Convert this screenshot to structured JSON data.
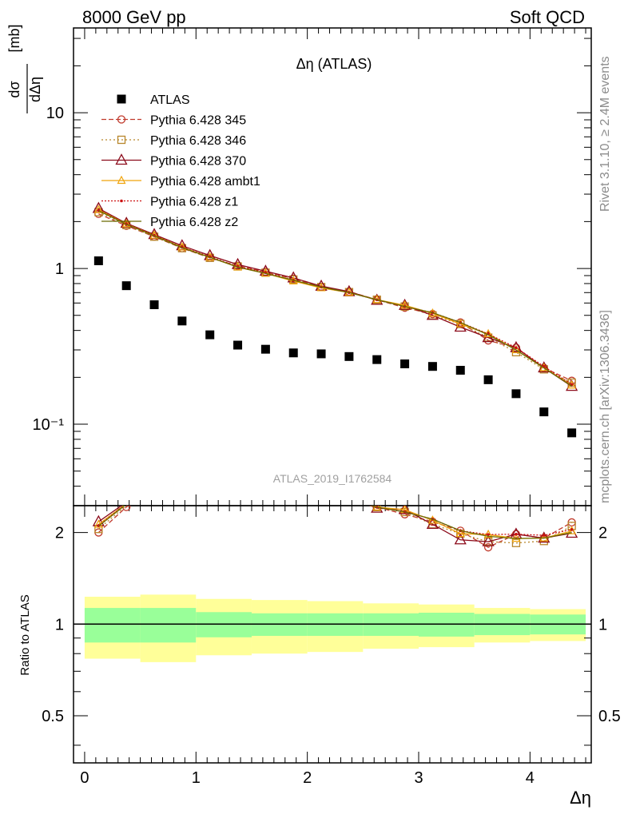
{
  "header": {
    "left": "8000 GeV pp",
    "right": "Soft QCD"
  },
  "side_text": {
    "rivet": "Rivet 3.1.10, ≥ 2.4M events",
    "mcplots": "mcplots.cern.ch [arXiv:1306.3436]"
  },
  "chart_data": {
    "type": "scatter",
    "title": "Δη (ATLAS)",
    "analysis": "ATLAS_2019_I1762584",
    "xlabel": "Δη",
    "ylabel": "dσ/dΔη [mb]",
    "ylabel_num": "dσ",
    "ylabel_den": "dΔη",
    "ylabel_unit": "[mb]",
    "ratio_ylabel": "Ratio to ATLAS",
    "xlim": [
      -0.1,
      4.55
    ],
    "ylim": [
      0.03,
      35
    ],
    "yscale": "log",
    "ratio_ylim": [
      0.35,
      2.45
    ],
    "x_ticks": [
      "0",
      "1",
      "2",
      "3",
      "4"
    ],
    "y_ticks": [
      "10",
      "1",
      "10⁻¹"
    ],
    "ratio_y_ticks": [
      "2",
      "1",
      "0.5"
    ],
    "x": [
      0.125,
      0.375,
      0.625,
      0.875,
      1.125,
      1.375,
      1.625,
      1.875,
      2.125,
      2.375,
      2.625,
      2.875,
      3.125,
      3.375,
      3.625,
      3.875,
      4.125,
      4.375
    ],
    "bin_edges": [
      0,
      0.5,
      1.0,
      1.5,
      2.0,
      2.5,
      3.0,
      3.5,
      4.0,
      4.5
    ],
    "band_inner": [
      0.13,
      0.13,
      0.095,
      0.085,
      0.085,
      0.085,
      0.09,
      0.08,
      0.075
    ],
    "band_outer": [
      0.23,
      0.25,
      0.21,
      0.2,
      0.19,
      0.17,
      0.16,
      0.13,
      0.12
    ],
    "series": [
      {
        "name": "ATLAS",
        "color": "#000000",
        "marker": "square",
        "values": [
          1.12,
          0.775,
          0.585,
          0.46,
          0.375,
          0.322,
          0.303,
          0.287,
          0.283,
          0.272,
          0.26,
          0.244,
          0.235,
          0.222,
          0.193,
          0.157,
          0.12,
          0.088
        ]
      },
      {
        "name": "Pythia 6.428 345",
        "color": "#c0392b",
        "marker": "circle",
        "dash": "6,3",
        "values": [
          2.24,
          1.88,
          1.6,
          1.35,
          1.17,
          1.04,
          0.95,
          0.86,
          0.76,
          0.71,
          0.63,
          0.56,
          0.51,
          0.45,
          0.345,
          0.31,
          0.23,
          0.19
        ]
      },
      {
        "name": "Pythia 6.428 346",
        "color": "#b8862b",
        "marker": "square-open",
        "dash": "2,3",
        "values": [
          2.3,
          1.9,
          1.6,
          1.35,
          1.17,
          1.03,
          0.94,
          0.85,
          0.76,
          0.705,
          0.63,
          0.57,
          0.5,
          0.44,
          0.36,
          0.29,
          0.225,
          0.185
        ]
      },
      {
        "name": "Pythia 6.428 370",
        "color": "#8b0a1a",
        "marker": "triangle",
        "dash": "",
        "values": [
          2.43,
          1.95,
          1.65,
          1.4,
          1.21,
          1.06,
          0.96,
          0.87,
          0.77,
          0.71,
          0.625,
          0.58,
          0.5,
          0.42,
          0.36,
          0.31,
          0.23,
          0.175
        ]
      },
      {
        "name": "Pythia 6.428 ambt1",
        "color": "#f0a30a",
        "marker": "triangle-small",
        "dash": "",
        "values": [
          2.38,
          1.93,
          1.63,
          1.37,
          1.18,
          1.02,
          0.93,
          0.83,
          0.75,
          0.7,
          0.63,
          0.58,
          0.515,
          0.44,
          0.38,
          0.3,
          0.23,
          0.178
        ]
      },
      {
        "name": "Pythia 6.428 z1",
        "color": "#cc1111",
        "marker": "dot",
        "dash": "2,2",
        "values": [
          2.36,
          1.93,
          1.63,
          1.37,
          1.19,
          1.03,
          0.94,
          0.84,
          0.76,
          0.7,
          0.63,
          0.57,
          0.52,
          0.45,
          0.38,
          0.31,
          0.235,
          0.18
        ]
      },
      {
        "name": "Pythia 6.428 z2",
        "color": "#6b6b00",
        "marker": "none",
        "dash": "",
        "values": [
          2.35,
          1.92,
          1.62,
          1.36,
          1.18,
          1.02,
          0.93,
          0.84,
          0.76,
          0.7,
          0.63,
          0.57,
          0.52,
          0.45,
          0.375,
          0.3,
          0.23,
          0.176
        ]
      }
    ]
  }
}
